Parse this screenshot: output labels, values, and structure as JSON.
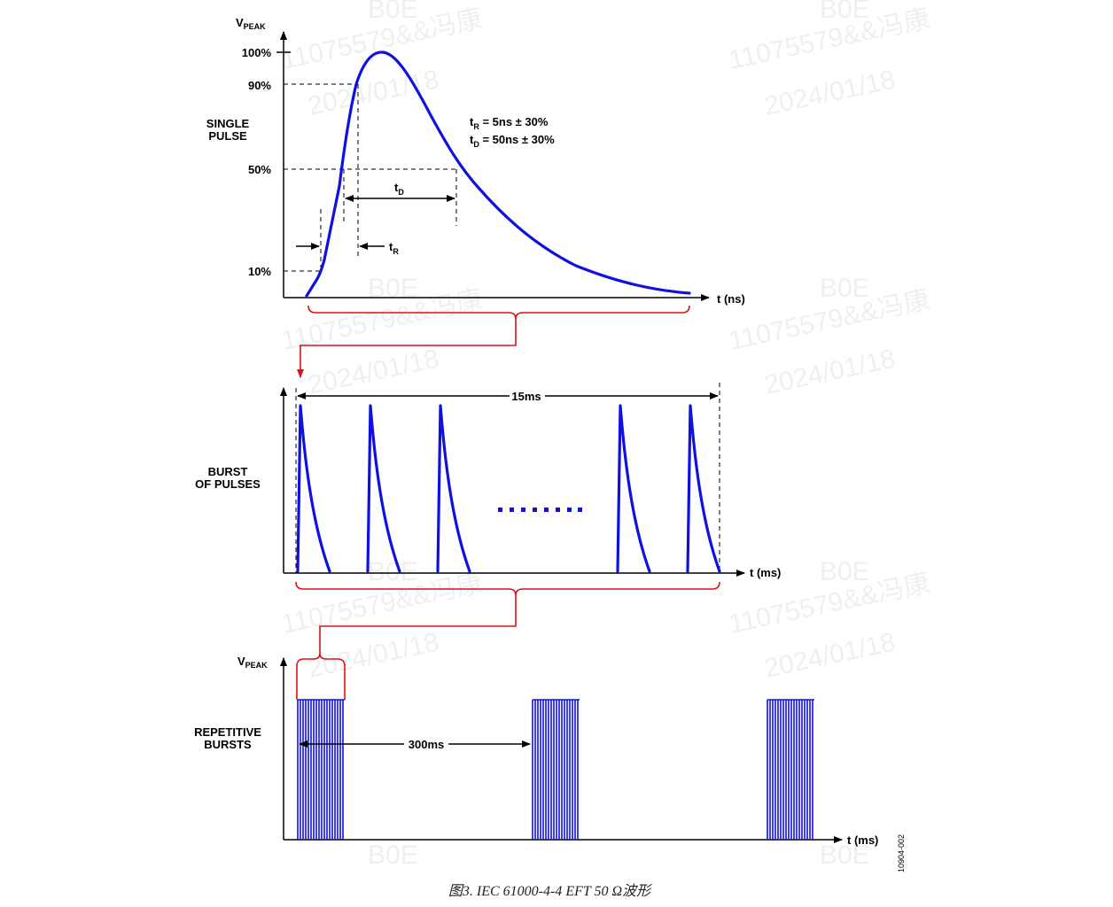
{
  "top": {
    "y_axis_label": "V",
    "y_axis_label_sub": "PEAK",
    "levels": [
      "100%",
      "90%",
      "50%",
      "10%"
    ],
    "row_label_1": "SINGLE",
    "row_label_2": "PULSE",
    "eq_tr_main": "t",
    "eq_tr_sub": "R",
    "eq_tr_text": " = 5ns ± 30%",
    "eq_td_main": "t",
    "eq_td_sub": "D",
    "eq_td_text": " = 50ns ± 30%",
    "td_label_main": "t",
    "td_label_sub": "D",
    "tr_label_main": "t",
    "tr_label_sub": "R",
    "x_axis_label": "t (ns)"
  },
  "middle": {
    "row_label_1": "BURST",
    "row_label_2": "OF PULSES",
    "span_label": "15ms",
    "x_axis_label": "t (ms)"
  },
  "bottom": {
    "y_axis_label": "V",
    "y_axis_label_sub": "PEAK",
    "row_label_1": "REPETITIVE",
    "row_label_2": "BURSTS",
    "period_label": "300ms",
    "x_axis_label": "t (ms)"
  },
  "figure_code": "10904-002",
  "caption": "图3. IEC 61000-4-4 EFT 50 Ω波形",
  "watermark": {
    "line1": "B0E",
    "line2": "11075579&&冯康",
    "line3": "2024/01/18"
  },
  "colors": {
    "waveform": "#1010e0",
    "bracket": "#e01010",
    "axes": "#000000"
  }
}
